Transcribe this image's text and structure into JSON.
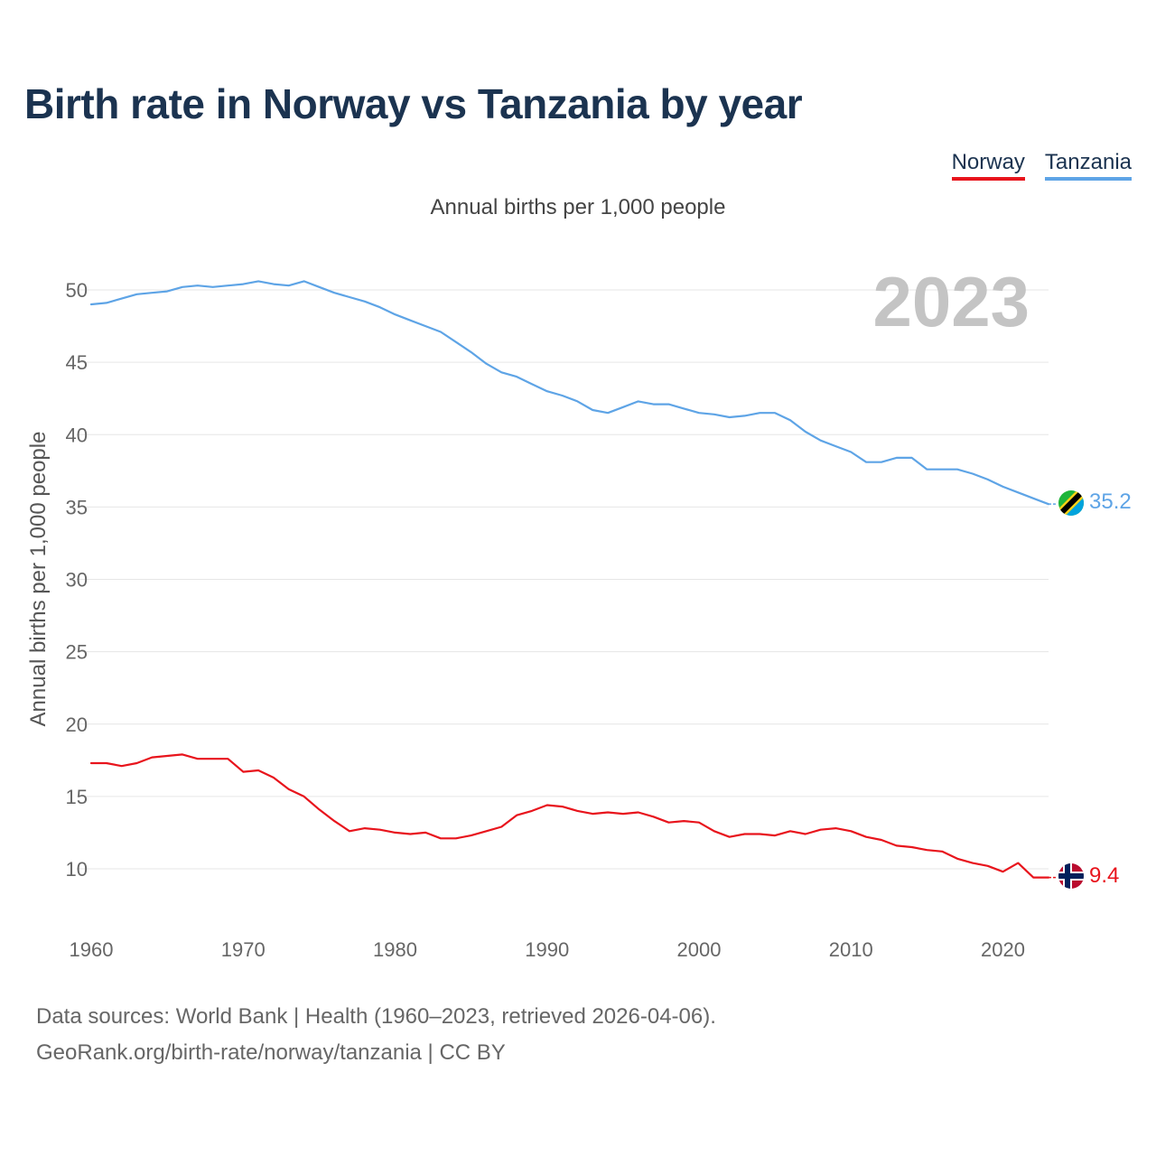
{
  "header": {
    "title": "Birth rate in Norway vs Tanzania by year",
    "subtitle": "Annual births per 1,000 people"
  },
  "legend": [
    {
      "label": "Norway",
      "color": "#e8141c"
    },
    {
      "label": "Tanzania",
      "color": "#5ea4e6"
    }
  ],
  "footer": {
    "line1": "Data sources: World Bank | Health (1960–2023, retrieved 2026-04-06).",
    "line2": "GeoRank.org/birth-rate/norway/tanzania | CC BY"
  },
  "chart_data": {
    "type": "line",
    "title": "Birth rate in Norway vs Tanzania by year",
    "subtitle": "Annual births per 1,000 people",
    "xlabel": "",
    "ylabel": "Annual births per 1,000 people",
    "xlim": [
      1960,
      2023
    ],
    "ylim": [
      7,
      52
    ],
    "x_ticks": [
      1960,
      1970,
      1980,
      1990,
      2000,
      2010,
      2020
    ],
    "y_ticks": [
      10,
      15,
      20,
      25,
      30,
      35,
      40,
      45,
      50
    ],
    "grid": true,
    "year_label": "2023",
    "x": [
      1960,
      1961,
      1962,
      1963,
      1964,
      1965,
      1966,
      1967,
      1968,
      1969,
      1970,
      1971,
      1972,
      1973,
      1974,
      1975,
      1976,
      1977,
      1978,
      1979,
      1980,
      1981,
      1982,
      1983,
      1984,
      1985,
      1986,
      1987,
      1988,
      1989,
      1990,
      1991,
      1992,
      1993,
      1994,
      1995,
      1996,
      1997,
      1998,
      1999,
      2000,
      2001,
      2002,
      2003,
      2004,
      2005,
      2006,
      2007,
      2008,
      2009,
      2010,
      2011,
      2012,
      2013,
      2014,
      2015,
      2016,
      2017,
      2018,
      2019,
      2020,
      2021,
      2022,
      2023
    ],
    "series": [
      {
        "name": "Norway",
        "color": "#e8141c",
        "end_label": "9.4",
        "values": [
          17.3,
          17.3,
          17.1,
          17.3,
          17.7,
          17.8,
          17.9,
          17.6,
          17.6,
          17.6,
          16.7,
          16.8,
          16.3,
          15.5,
          15.0,
          14.1,
          13.3,
          12.6,
          12.8,
          12.7,
          12.5,
          12.4,
          12.5,
          12.1,
          12.1,
          12.3,
          12.6,
          12.9,
          13.7,
          14.0,
          14.4,
          14.3,
          14.0,
          13.8,
          13.9,
          13.8,
          13.9,
          13.6,
          13.2,
          13.3,
          13.2,
          12.6,
          12.2,
          12.4,
          12.4,
          12.3,
          12.6,
          12.4,
          12.7,
          12.8,
          12.6,
          12.2,
          12.0,
          11.6,
          11.5,
          11.3,
          11.2,
          10.7,
          10.4,
          10.2,
          9.8,
          10.4,
          9.4,
          9.4
        ]
      },
      {
        "name": "Tanzania",
        "color": "#5ea4e6",
        "end_label": "35.2",
        "values": [
          49.0,
          49.1,
          49.4,
          49.7,
          49.8,
          49.9,
          50.2,
          50.3,
          50.2,
          50.3,
          50.4,
          50.6,
          50.4,
          50.3,
          50.6,
          50.2,
          49.8,
          49.5,
          49.2,
          48.8,
          48.3,
          47.9,
          47.5,
          47.1,
          46.4,
          45.7,
          44.9,
          44.3,
          44.0,
          43.5,
          43.0,
          42.7,
          42.3,
          41.7,
          41.5,
          41.9,
          42.3,
          42.1,
          42.1,
          41.8,
          41.5,
          41.4,
          41.2,
          41.3,
          41.5,
          41.5,
          41.0,
          40.2,
          39.6,
          39.2,
          38.8,
          38.1,
          38.1,
          38.4,
          38.4,
          37.6,
          37.6,
          37.6,
          37.3,
          36.9,
          36.4,
          36.0,
          35.6,
          35.2
        ]
      }
    ]
  }
}
